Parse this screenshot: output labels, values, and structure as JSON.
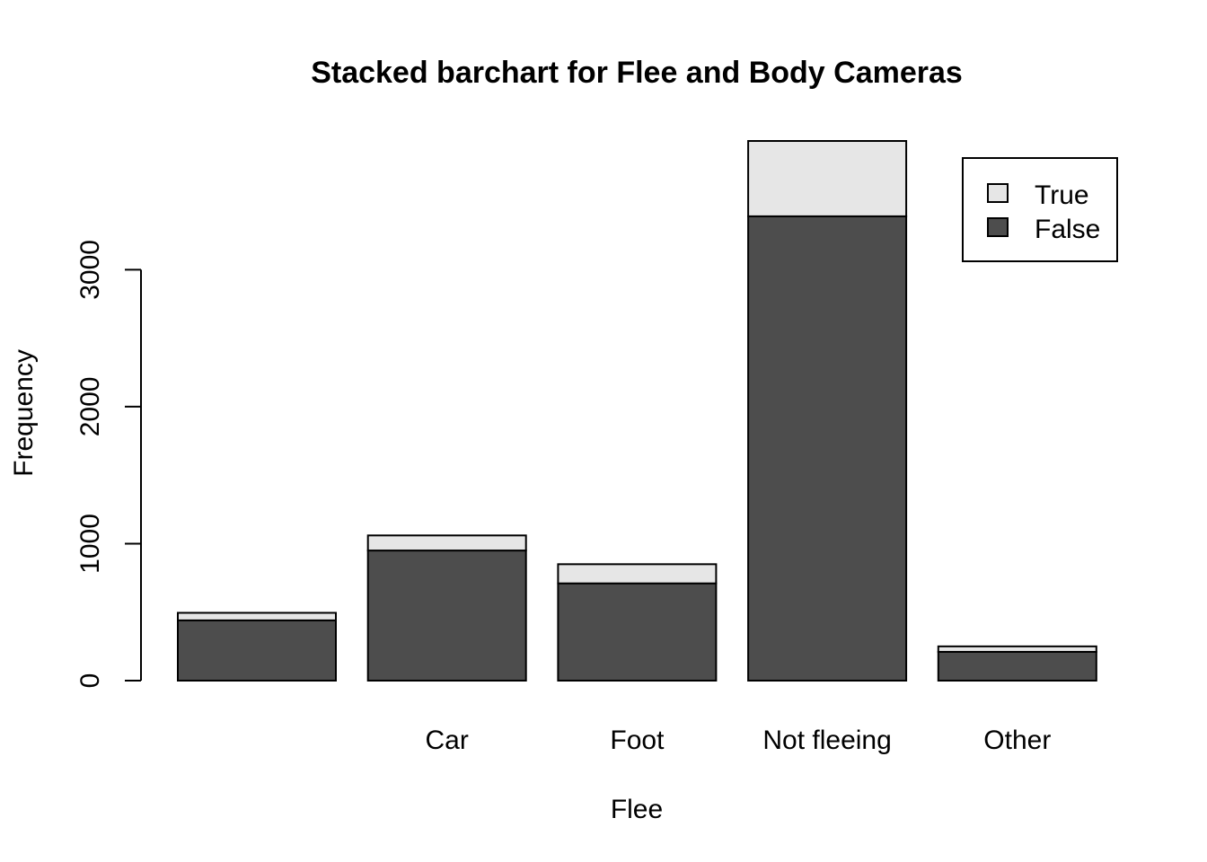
{
  "chart_data": {
    "type": "bar",
    "stacked": true,
    "title": "Stacked barchart for Flee and Body Cameras",
    "xlabel": "Flee",
    "ylabel": "Frequency",
    "categories": [
      "",
      "Car",
      "Foot",
      "Not fleeing",
      "Other"
    ],
    "series": [
      {
        "name": "False",
        "color": "#4d4d4d",
        "values": [
          440,
          950,
          710,
          3390,
          210
        ]
      },
      {
        "name": "True",
        "color": "#e6e6e6",
        "values": [
          55,
          110,
          140,
          550,
          40
        ]
      }
    ],
    "y_ticks": [
      0,
      1000,
      2000,
      3000
    ],
    "ylim": [
      0,
      3940
    ],
    "grid": false,
    "legend_position": "top-right",
    "legend_order": [
      "True",
      "False"
    ]
  }
}
